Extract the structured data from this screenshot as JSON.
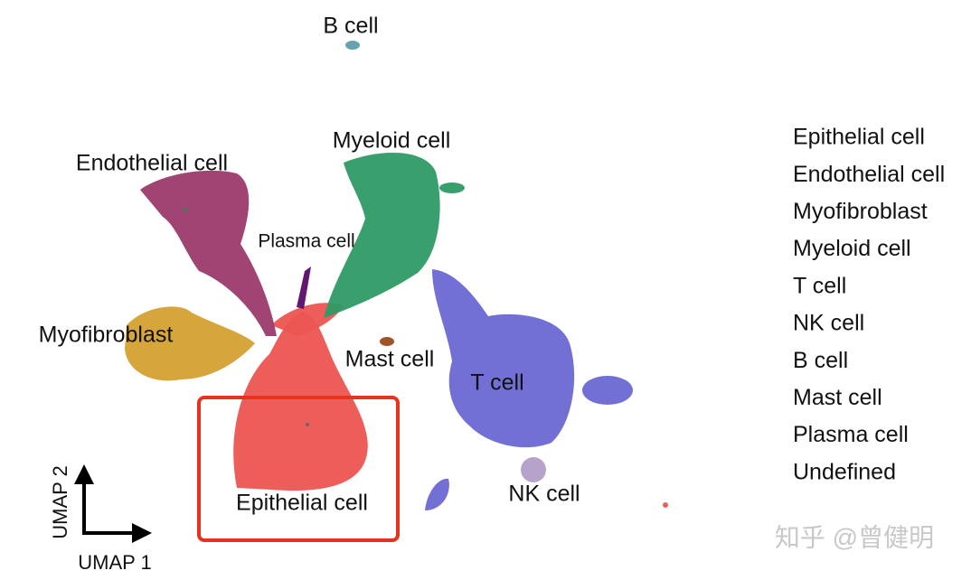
{
  "chart_data": {
    "type": "umap",
    "x_label": "UMAP 1",
    "y_label": "UMAP 2",
    "series": [
      {
        "name": "Epithelial cell",
        "color": "#ec5552"
      },
      {
        "name": "Endothelial cell",
        "color": "#9b3a6b"
      },
      {
        "name": "Myofibroblast",
        "color": "#d4a032"
      },
      {
        "name": "Myeloid cell",
        "color": "#2e9a64"
      },
      {
        "name": "T cell",
        "color": "#6a68d2"
      },
      {
        "name": "NK cell",
        "color": "#b39dc8"
      },
      {
        "name": "B cell",
        "color": "#5f9ea8"
      },
      {
        "name": "Mast cell",
        "color": "#9a4a1e"
      },
      {
        "name": "Plasma cell",
        "color": "#5a0b6a"
      },
      {
        "name": "Undefined",
        "color": "#666666"
      }
    ],
    "annotations": [
      "B cell",
      "Endothelial cell",
      "Myeloid cell",
      "Plasma cell",
      "Myofibroblast",
      "Mast cell",
      "T cell",
      "NK cell",
      "Epithelial cell"
    ]
  },
  "watermark": "知乎 @曾健明"
}
